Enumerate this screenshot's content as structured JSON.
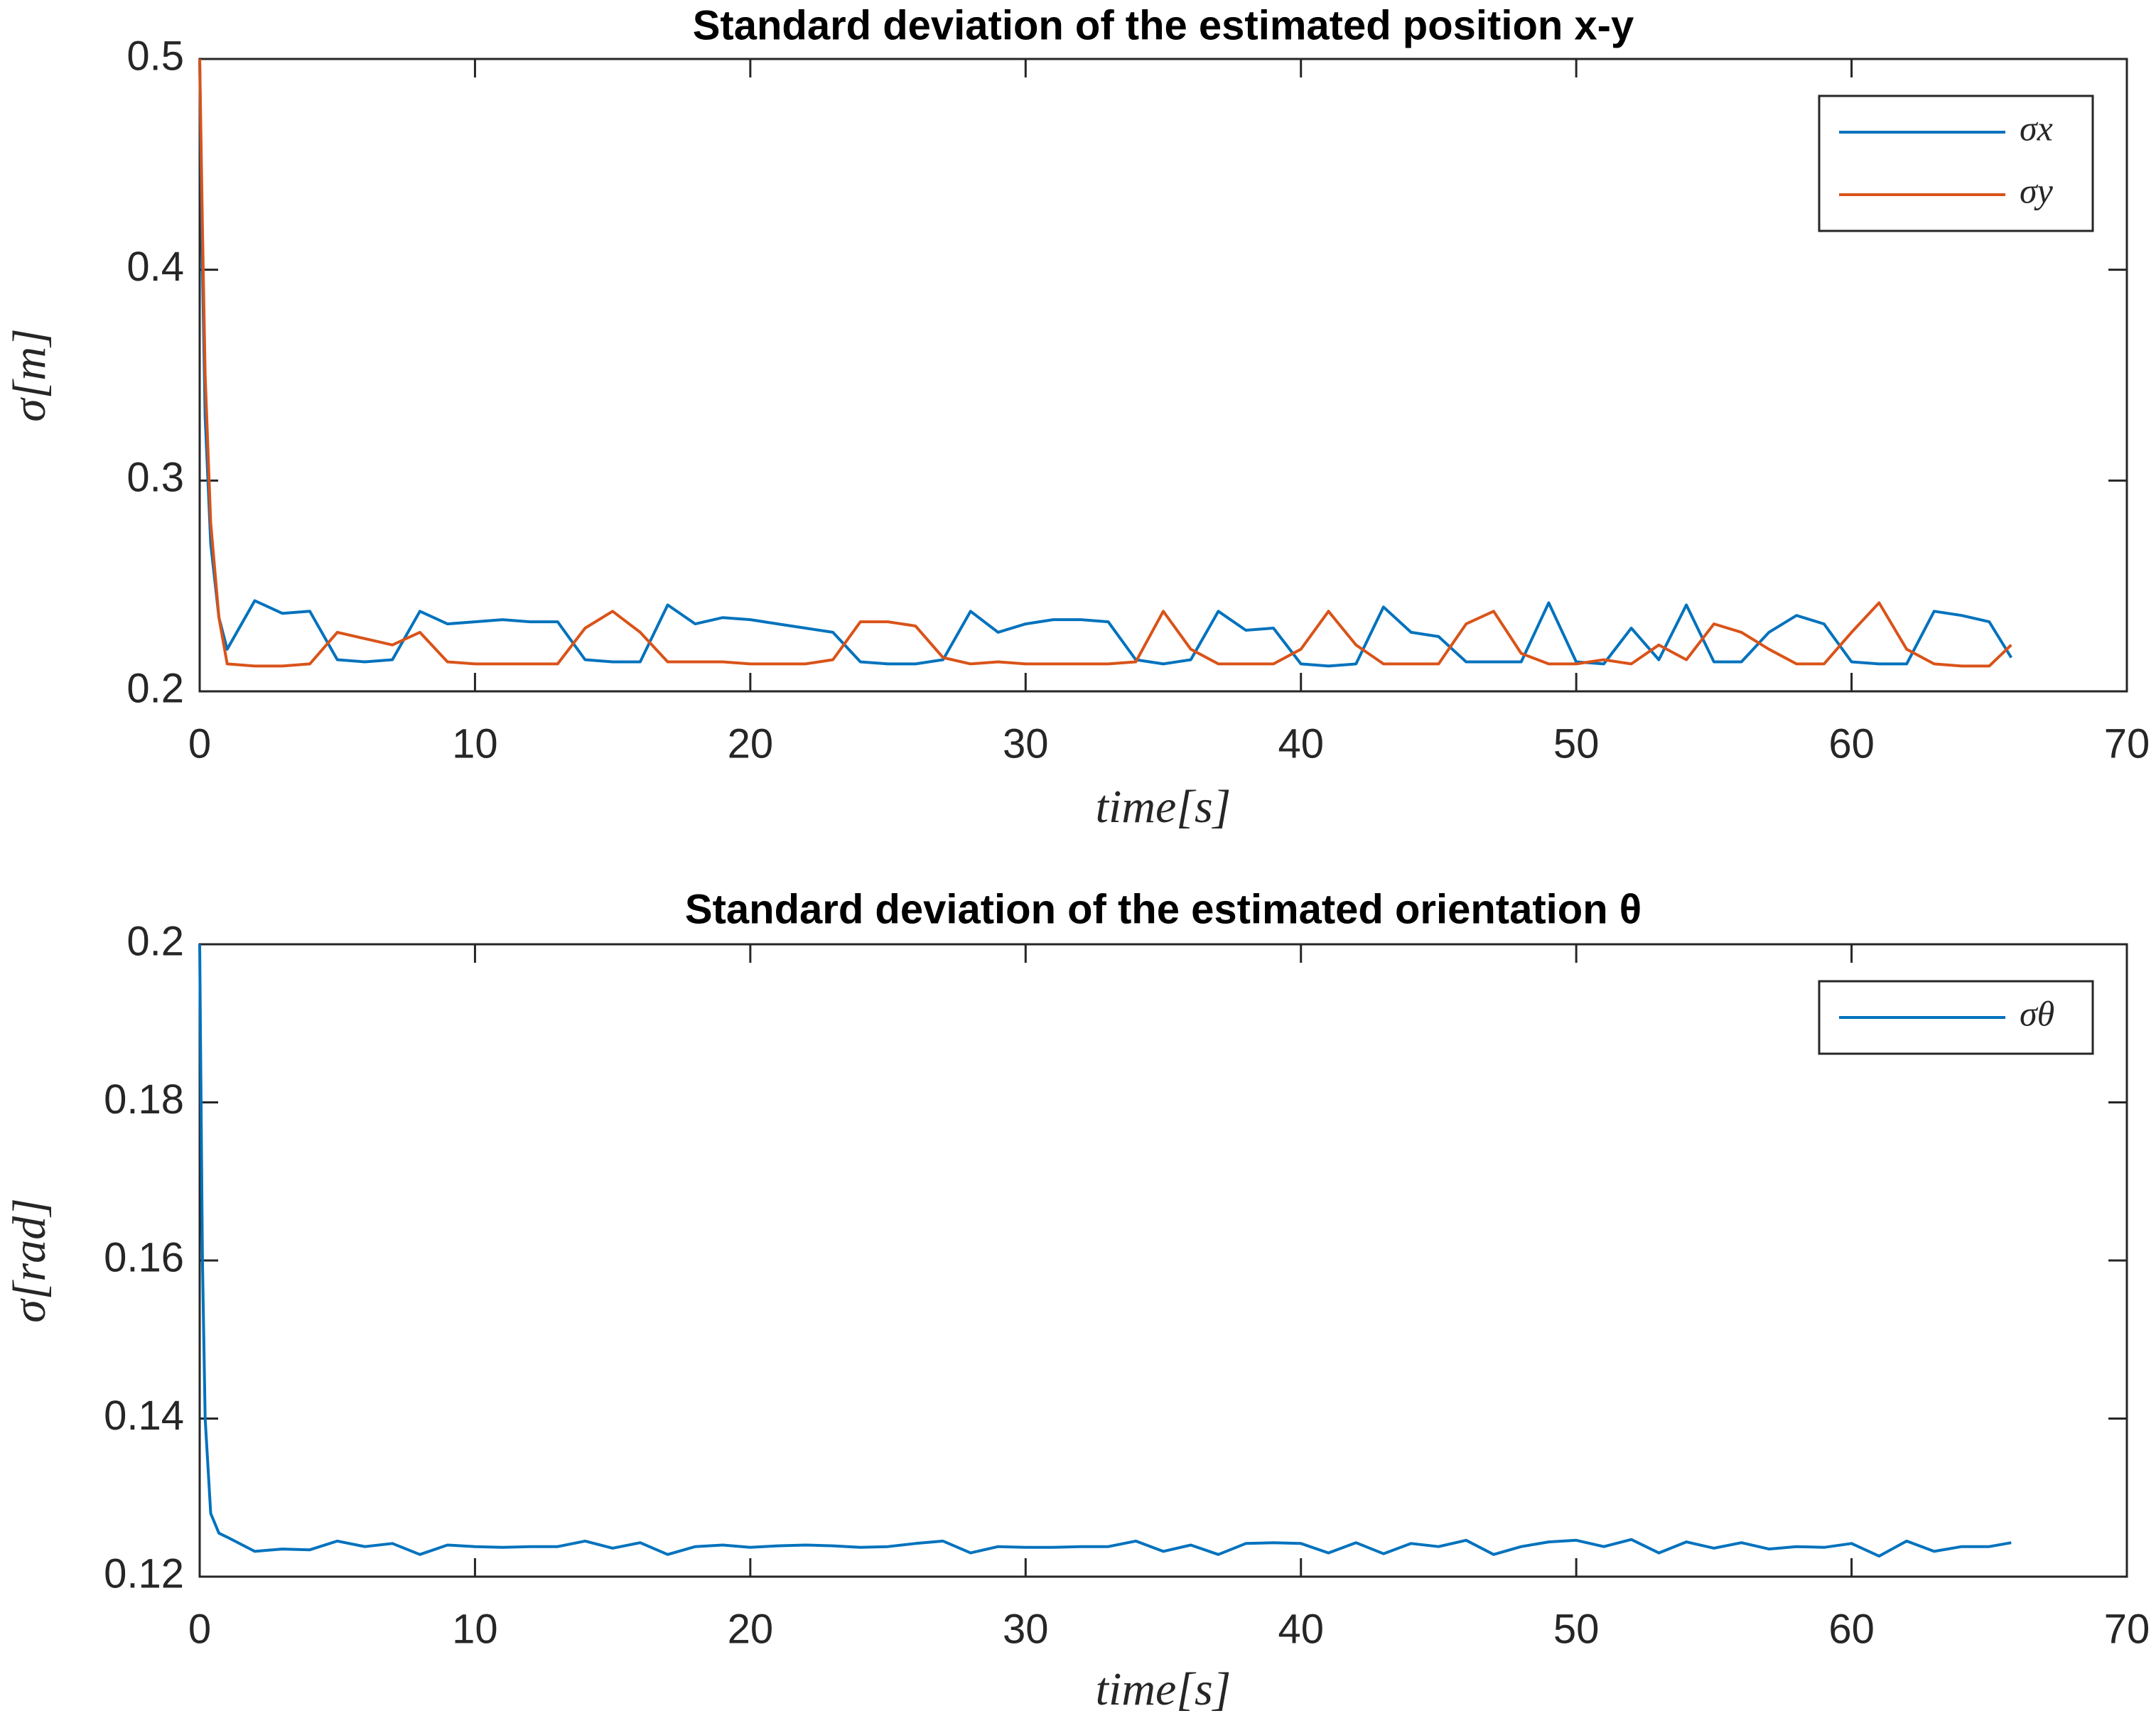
{
  "chart_data": [
    {
      "type": "line",
      "title": "Standard deviation of the estimated position x-y",
      "x_label": "time[s]",
      "y_label": "σ[m]",
      "x": [
        0,
        0.1,
        0.2,
        0.4,
        0.7,
        1,
        2,
        3,
        4,
        5,
        6,
        7,
        8,
        9,
        10,
        11,
        12,
        13,
        14,
        15,
        16,
        17,
        18,
        19,
        20,
        21,
        22,
        23,
        24,
        25,
        26,
        27,
        28,
        29,
        30,
        31,
        32,
        33,
        34,
        35,
        36,
        37,
        38,
        39,
        40,
        41,
        42,
        43,
        44,
        45,
        46,
        47,
        48,
        49,
        50,
        51,
        52,
        53,
        54,
        55,
        56,
        57,
        58,
        59,
        60,
        61,
        62,
        63,
        64,
        65,
        65.8
      ],
      "series": [
        {
          "name": "σx",
          "color": "#0072bd",
          "values": [
            0.5,
            0.4,
            0.33,
            0.27,
            0.235,
            0.22,
            0.243,
            0.237,
            0.238,
            0.215,
            0.214,
            0.215,
            0.238,
            0.232,
            0.233,
            0.234,
            0.233,
            0.233,
            0.215,
            0.214,
            0.214,
            0.241,
            0.232,
            0.235,
            0.234,
            0.232,
            0.23,
            0.228,
            0.214,
            0.213,
            0.213,
            0.215,
            0.238,
            0.228,
            0.232,
            0.234,
            0.234,
            0.233,
            0.215,
            0.213,
            0.215,
            0.238,
            0.229,
            0.23,
            0.213,
            0.212,
            0.213,
            0.24,
            0.228,
            0.226,
            0.214,
            0.214,
            0.214,
            0.242,
            0.214,
            0.213,
            0.23,
            0.215,
            0.241,
            0.214,
            0.214,
            0.228,
            0.236,
            0.232,
            0.214,
            0.213,
            0.213,
            0.238,
            0.236,
            0.233,
            0.216
          ]
        },
        {
          "name": "σy",
          "color": "#d95319",
          "values": [
            0.5,
            0.42,
            0.35,
            0.28,
            0.235,
            0.213,
            0.212,
            0.212,
            0.213,
            0.228,
            0.225,
            0.222,
            0.228,
            0.214,
            0.213,
            0.213,
            0.213,
            0.213,
            0.23,
            0.238,
            0.228,
            0.214,
            0.214,
            0.214,
            0.213,
            0.213,
            0.213,
            0.215,
            0.233,
            0.233,
            0.231,
            0.216,
            0.213,
            0.214,
            0.213,
            0.213,
            0.213,
            0.213,
            0.214,
            0.238,
            0.22,
            0.213,
            0.213,
            0.213,
            0.22,
            0.238,
            0.222,
            0.213,
            0.213,
            0.213,
            0.232,
            0.238,
            0.218,
            0.213,
            0.213,
            0.215,
            0.213,
            0.222,
            0.215,
            0.232,
            0.228,
            0.22,
            0.213,
            0.213,
            0.228,
            0.242,
            0.22,
            0.213,
            0.212,
            0.212,
            0.222
          ]
        }
      ],
      "xlim": [
        0,
        70
      ],
      "xticks": [
        0,
        10,
        20,
        30,
        40,
        50,
        60,
        70
      ],
      "ylim": [
        0.2,
        0.5
      ],
      "yticks": [
        0.2,
        0.3,
        0.4,
        0.5
      ],
      "legend": "upper right",
      "grid": false
    },
    {
      "type": "line",
      "title": "Standard deviation of the estimated orientation θ",
      "x_label": "time[s]",
      "y_label": "σ[rad]",
      "x": [
        0,
        0.1,
        0.2,
        0.4,
        0.7,
        1,
        2,
        3,
        4,
        5,
        6,
        7,
        8,
        9,
        10,
        11,
        12,
        13,
        14,
        15,
        16,
        17,
        18,
        19,
        20,
        21,
        22,
        23,
        24,
        25,
        26,
        27,
        28,
        29,
        30,
        31,
        32,
        33,
        34,
        35,
        36,
        37,
        38,
        39,
        40,
        41,
        42,
        43,
        44,
        45,
        46,
        47,
        48,
        49,
        50,
        51,
        52,
        53,
        54,
        55,
        56,
        57,
        58,
        59,
        60,
        61,
        62,
        63,
        64,
        65,
        65.8
      ],
      "series": [
        {
          "name": "σθ",
          "color": "#0072bd",
          "values": [
            0.2,
            0.16,
            0.14,
            0.128,
            0.1255,
            0.125,
            0.1232,
            0.1235,
            0.1234,
            0.1245,
            0.1238,
            0.1242,
            0.1228,
            0.124,
            0.1238,
            0.1237,
            0.1238,
            0.1238,
            0.1245,
            0.1236,
            0.1243,
            0.1228,
            0.1238,
            0.124,
            0.1237,
            0.1239,
            0.124,
            0.1239,
            0.1237,
            0.1238,
            0.1242,
            0.1245,
            0.123,
            0.1238,
            0.1237,
            0.1237,
            0.1238,
            0.1238,
            0.1245,
            0.1232,
            0.124,
            0.1228,
            0.1242,
            0.1243,
            0.1242,
            0.123,
            0.1243,
            0.1229,
            0.1242,
            0.1238,
            0.1246,
            0.1228,
            0.1238,
            0.1244,
            0.1246,
            0.1238,
            0.1247,
            0.123,
            0.1244,
            0.1236,
            0.1243,
            0.1235,
            0.1238,
            0.1237,
            0.1242,
            0.1226,
            0.1245,
            0.1232,
            0.1238,
            0.1238,
            0.1243
          ]
        }
      ],
      "xlim": [
        0,
        70
      ],
      "xticks": [
        0,
        10,
        20,
        30,
        40,
        50,
        60,
        70
      ],
      "ylim": [
        0.12,
        0.2
      ],
      "yticks": [
        0.12,
        0.14,
        0.16,
        0.18,
        0.2
      ],
      "legend": "upper right",
      "grid": false
    }
  ]
}
